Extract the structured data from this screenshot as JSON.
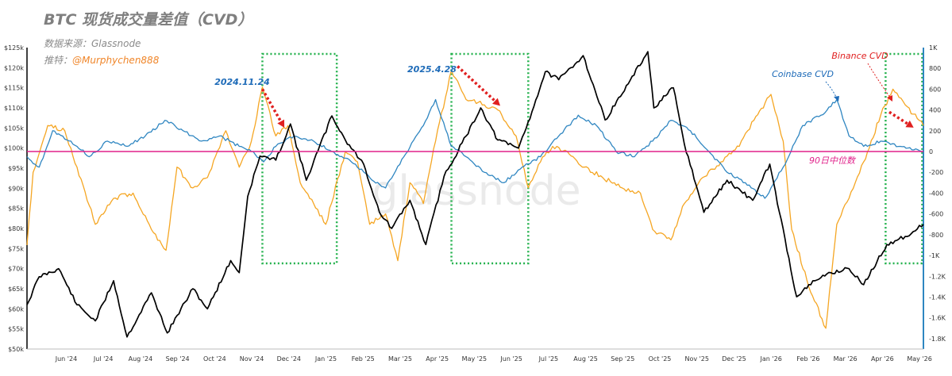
{
  "header": {
    "title": "BTC 现货成交量差值（CVD）",
    "source": "数据来源：Glassnode",
    "author_label": "推特：",
    "author_handle": "@Murphychen888"
  },
  "watermark": "glassnode",
  "colors": {
    "price": "#000000",
    "binance": "#f5a623",
    "coinbase": "#2f86c1",
    "median": "#e0218a",
    "box": "#22b14c",
    "arrow": "#e02020",
    "date_label": "#1e6bb8",
    "binance_label": "#e02020",
    "coinbase_label": "#1e6bb8",
    "right_axis": "#2f86c1"
  },
  "chart_data": {
    "type": "line",
    "x_ticks": [
      "Jun '24",
      "Jul '24",
      "Aug '24",
      "Sep '24",
      "Oct '24",
      "Nov '24",
      "Dec '24",
      "Jan '25",
      "Feb '25",
      "Mar '25",
      "Apr '25",
      "May '25",
      "Jun '25",
      "Jul '25",
      "Aug '25",
      "Sep '25",
      "Oct '25",
      "Nov '25",
      "Dec '25",
      "Jan '26",
      "Feb '26",
      "Mar '26",
      "Apr '26",
      "May '26"
    ],
    "x_range": [
      "2024-05-15",
      "2026-05-20"
    ],
    "left_axis": {
      "ylim": [
        50000,
        125000
      ],
      "ticks": [
        50000,
        55000,
        60000,
        65000,
        70000,
        75000,
        80000,
        85000,
        90000,
        95000,
        100000,
        105000,
        110000,
        115000,
        120000,
        125000
      ],
      "tick_labels": [
        "$50k",
        "$55k",
        "$60k",
        "$65k",
        "$70k",
        "$75k",
        "$80k",
        "$85k",
        "$90k",
        "$95k",
        "$100k",
        "$105k",
        "$110k",
        "$115k",
        "$120k",
        "$125k"
      ]
    },
    "right_axis": {
      "ylim": [
        -1900,
        1000
      ],
      "ticks": [
        1000,
        800,
        600,
        400,
        200,
        0,
        -200,
        -400,
        -600,
        -800,
        -1000,
        -1200,
        -1400,
        -1600,
        -1800
      ],
      "tick_labels": [
        "1K",
        "800",
        "600",
        "400",
        "200",
        "0",
        "-200",
        "-400",
        "-600",
        "-800",
        "-1K",
        "-1.2K",
        "-1.4K",
        "-1.6K",
        "-1.8K"
      ]
    },
    "series": [
      {
        "axis": "left",
        "points": [
          [
            "2024-05-15",
            61000
          ],
          [
            "2024-05-25",
            68000
          ],
          [
            "2024-06-10",
            70000
          ],
          [
            "2024-06-25",
            61000
          ],
          [
            "2024-07-10",
            57000
          ],
          [
            "2024-07-25",
            67000
          ],
          [
            "2024-08-05",
            53000
          ],
          [
            "2024-08-25",
            64000
          ],
          [
            "2024-09-07",
            54000
          ],
          [
            "2024-09-28",
            65000
          ],
          [
            "2024-10-10",
            60000
          ],
          [
            "2024-10-29",
            72000
          ],
          [
            "2024-11-05",
            69000
          ],
          [
            "2024-11-12",
            88000
          ],
          [
            "2024-11-22",
            98000
          ],
          [
            "2024-12-05",
            97000
          ],
          [
            "2024-12-17",
            106000
          ],
          [
            "2024-12-30",
            92000
          ],
          [
            "2025-01-20",
            108000
          ],
          [
            "2025-01-31",
            102000
          ],
          [
            "2025-02-15",
            96000
          ],
          [
            "2025-02-28",
            84000
          ],
          [
            "2025-03-10",
            80000
          ],
          [
            "2025-03-25",
            87000
          ],
          [
            "2025-04-07",
            76000
          ],
          [
            "2025-04-22",
            93000
          ],
          [
            "2025-05-10",
            103000
          ],
          [
            "2025-05-22",
            110000
          ],
          [
            "2025-06-05",
            102000
          ],
          [
            "2025-06-22",
            100000
          ],
          [
            "2025-07-03",
            109000
          ],
          [
            "2025-07-14",
            119000
          ],
          [
            "2025-07-25",
            117000
          ],
          [
            "2025-08-14",
            123000
          ],
          [
            "2025-09-01",
            107000
          ],
          [
            "2025-09-20",
            116000
          ],
          [
            "2025-10-06",
            124000
          ],
          [
            "2025-10-11",
            110000
          ],
          [
            "2025-10-27",
            115000
          ],
          [
            "2025-11-05",
            101000
          ],
          [
            "2025-11-21",
            84000
          ],
          [
            "2025-12-10",
            92000
          ],
          [
            "2025-12-31",
            87000
          ],
          [
            "2026-01-14",
            96000
          ],
          [
            "2026-02-05",
            63000
          ],
          [
            "2026-02-20",
            67000
          ],
          [
            "2026-03-05",
            69000
          ],
          [
            "2026-03-20",
            70000
          ],
          [
            "2026-04-01",
            66000
          ],
          [
            "2026-04-20",
            76000
          ],
          [
            "2026-05-05",
            78000
          ],
          [
            "2026-05-20",
            81000
          ]
        ]
      },
      {
        "axis": "right",
        "points": [
          [
            "2024-05-15",
            -900
          ],
          [
            "2024-05-20",
            -200
          ],
          [
            "2024-06-01",
            250
          ],
          [
            "2024-06-15",
            200
          ],
          [
            "2024-06-25",
            -150
          ],
          [
            "2024-07-10",
            -700
          ],
          [
            "2024-07-25",
            -450
          ],
          [
            "2024-08-10",
            -400
          ],
          [
            "2024-08-25",
            -750
          ],
          [
            "2024-09-06",
            -950
          ],
          [
            "2024-09-15",
            -150
          ],
          [
            "2024-09-28",
            -350
          ],
          [
            "2024-10-10",
            -250
          ],
          [
            "2024-10-25",
            200
          ],
          [
            "2024-11-05",
            -150
          ],
          [
            "2024-11-15",
            100
          ],
          [
            "2024-11-24",
            620
          ],
          [
            "2024-12-05",
            150
          ],
          [
            "2024-12-15",
            250
          ],
          [
            "2024-12-25",
            -300
          ],
          [
            "2025-01-05",
            -500
          ],
          [
            "2025-01-15",
            -700
          ],
          [
            "2025-01-31",
            0
          ],
          [
            "2025-02-10",
            -100
          ],
          [
            "2025-02-20",
            -700
          ],
          [
            "2025-03-05",
            -600
          ],
          [
            "2025-03-15",
            -1050
          ],
          [
            "2025-03-25",
            -300
          ],
          [
            "2025-04-05",
            -500
          ],
          [
            "2025-04-15",
            100
          ],
          [
            "2025-04-28",
            780
          ],
          [
            "2025-05-10",
            500
          ],
          [
            "2025-05-25",
            450
          ],
          [
            "2025-06-05",
            400
          ],
          [
            "2025-06-20",
            150
          ],
          [
            "2025-06-30",
            -350
          ],
          [
            "2025-07-10",
            -100
          ],
          [
            "2025-07-20",
            50
          ],
          [
            "2025-08-01",
            0
          ],
          [
            "2025-08-15",
            -150
          ],
          [
            "2025-08-30",
            -250
          ],
          [
            "2025-09-15",
            -350
          ],
          [
            "2025-09-30",
            -400
          ],
          [
            "2025-10-10",
            -750
          ],
          [
            "2025-10-25",
            -850
          ],
          [
            "2025-11-05",
            -500
          ],
          [
            "2025-11-20",
            -250
          ],
          [
            "2025-12-05",
            -100
          ],
          [
            "2025-12-20",
            50
          ],
          [
            "2026-01-01",
            300
          ],
          [
            "2026-01-15",
            550
          ],
          [
            "2026-01-25",
            100
          ],
          [
            "2026-02-01",
            -750
          ],
          [
            "2026-02-15",
            -1300
          ],
          [
            "2026-03-01",
            -1700
          ],
          [
            "2026-03-10",
            -700
          ],
          [
            "2026-03-20",
            -450
          ],
          [
            "2026-04-01",
            -100
          ],
          [
            "2026-04-15",
            350
          ],
          [
            "2026-04-25",
            600
          ],
          [
            "2026-05-05",
            450
          ],
          [
            "2026-05-20",
            250
          ]
        ]
      },
      {
        "axis": "right",
        "points": [
          [
            "2024-05-15",
            -50
          ],
          [
            "2024-05-25",
            -150
          ],
          [
            "2024-06-05",
            200
          ],
          [
            "2024-06-20",
            100
          ],
          [
            "2024-07-05",
            -50
          ],
          [
            "2024-07-20",
            100
          ],
          [
            "2024-08-05",
            50
          ],
          [
            "2024-08-20",
            150
          ],
          [
            "2024-09-05",
            300
          ],
          [
            "2024-09-20",
            200
          ],
          [
            "2024-10-05",
            100
          ],
          [
            "2024-10-20",
            150
          ],
          [
            "2024-11-05",
            50
          ],
          [
            "2024-11-15",
            0
          ],
          [
            "2024-11-25",
            -100
          ],
          [
            "2024-12-05",
            50
          ],
          [
            "2024-12-20",
            150
          ],
          [
            "2025-01-05",
            100
          ],
          [
            "2025-01-20",
            0
          ],
          [
            "2025-02-05",
            -100
          ],
          [
            "2025-02-20",
            -250
          ],
          [
            "2025-03-05",
            -350
          ],
          [
            "2025-03-20",
            -50
          ],
          [
            "2025-04-05",
            250
          ],
          [
            "2025-04-15",
            500
          ],
          [
            "2025-04-28",
            50
          ],
          [
            "2025-05-10",
            -50
          ],
          [
            "2025-05-25",
            -200
          ],
          [
            "2025-06-10",
            -300
          ],
          [
            "2025-06-25",
            -150
          ],
          [
            "2025-07-10",
            -50
          ],
          [
            "2025-07-25",
            150
          ],
          [
            "2025-08-10",
            350
          ],
          [
            "2025-08-25",
            250
          ],
          [
            "2025-09-10",
            0
          ],
          [
            "2025-09-25",
            -50
          ],
          [
            "2025-10-10",
            100
          ],
          [
            "2025-10-25",
            300
          ],
          [
            "2025-11-10",
            200
          ],
          [
            "2025-11-25",
            0
          ],
          [
            "2025-12-10",
            -200
          ],
          [
            "2025-12-25",
            -300
          ],
          [
            "2026-01-10",
            -450
          ],
          [
            "2026-01-25",
            -150
          ],
          [
            "2026-02-10",
            250
          ],
          [
            "2026-02-25",
            350
          ],
          [
            "2026-03-10",
            500
          ],
          [
            "2026-03-20",
            150
          ],
          [
            "2026-04-01",
            50
          ],
          [
            "2026-04-15",
            100
          ],
          [
            "2026-05-01",
            50
          ],
          [
            "2026-05-20",
            0
          ]
        ]
      },
      {
        "axis": "right",
        "points": [
          [
            "2024-05-15",
            0
          ],
          [
            "2026-05-20",
            0
          ]
        ]
      }
    ],
    "highlight_boxes": [
      {
        "start": "2024-11-24",
        "end": "2025-01-24"
      },
      {
        "start": "2025-04-28",
        "end": "2025-06-30"
      },
      {
        "start": "2026-04-19",
        "end": "2026-05-19"
      }
    ],
    "annotations": [
      {
        "text": "2024.11.24",
        "x": "2024-11-24"
      },
      {
        "text": "2025.4.28",
        "x": "2025-04-28"
      },
      {
        "text": "Binance CVD"
      },
      {
        "text": "Coinbase CVD"
      },
      {
        "text": "90日中位数"
      }
    ]
  }
}
